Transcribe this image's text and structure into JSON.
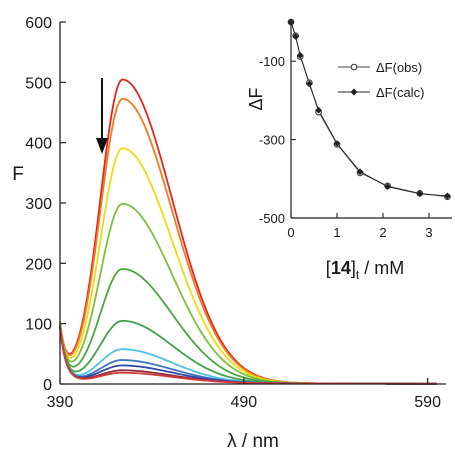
{
  "chart_data": [
    {
      "type": "line",
      "xlabel": "λ / nm",
      "ylabel": "F",
      "xlim": [
        390,
        600
      ],
      "ylim": [
        0,
        600
      ],
      "x_ticks": [
        390,
        490,
        590
      ],
      "y_ticks": [
        0,
        100,
        200,
        300,
        400,
        500,
        600
      ],
      "annotation": "downward arrow (fluorescence decreases with increasing [14])",
      "peak_x": 424,
      "series": [
        {
          "color": "#e8241c",
          "peak": 502
        },
        {
          "color": "#f07a1e",
          "peak": 470
        },
        {
          "color": "#eedc10",
          "peak": 388
        },
        {
          "color": "#7fbf3a",
          "peak": 296
        },
        {
          "color": "#4aa83c",
          "peak": 188
        },
        {
          "color": "#3da34a",
          "peak": 102
        },
        {
          "color": "#4cc3e0",
          "peak": 55
        },
        {
          "color": "#3f74c3",
          "peak": 37
        },
        {
          "color": "#3046a8",
          "peak": 28
        },
        {
          "color": "#8a2a3a",
          "peak": 20
        },
        {
          "color": "#d63a3a",
          "peak": 16
        }
      ]
    },
    {
      "type": "line",
      "xlabel_bold": "14",
      "xlabel_pre": "[",
      "xlabel_post": "]",
      "xlabel_sub": "t",
      "xlabel_units": " / mM",
      "ylabel": "ΔF",
      "xlim": [
        0,
        3.5
      ],
      "ylim": [
        -500,
        0
      ],
      "x_ticks": [
        0,
        1,
        2,
        3
      ],
      "y_ticks": [
        -100,
        -300,
        -500
      ],
      "legend_position": "top-right",
      "series": [
        {
          "name": "ΔF(obs)",
          "marker": "open-circle",
          "x": [
            0,
            0.1,
            0.2,
            0.4,
            0.6,
            1.0,
            1.5,
            2.1,
            2.8,
            3.4
          ],
          "y": [
            0,
            -35,
            -88,
            -155,
            -230,
            -312,
            -385,
            -418,
            -437,
            -446
          ]
        },
        {
          "name": "ΔF(calc)",
          "marker": "filled-diamond",
          "x": [
            0,
            0.1,
            0.2,
            0.4,
            0.6,
            1.0,
            1.5,
            2.1,
            2.8,
            3.4
          ],
          "y": [
            0,
            -37,
            -85,
            -158,
            -225,
            -310,
            -382,
            -420,
            -438,
            -444
          ]
        }
      ]
    }
  ]
}
